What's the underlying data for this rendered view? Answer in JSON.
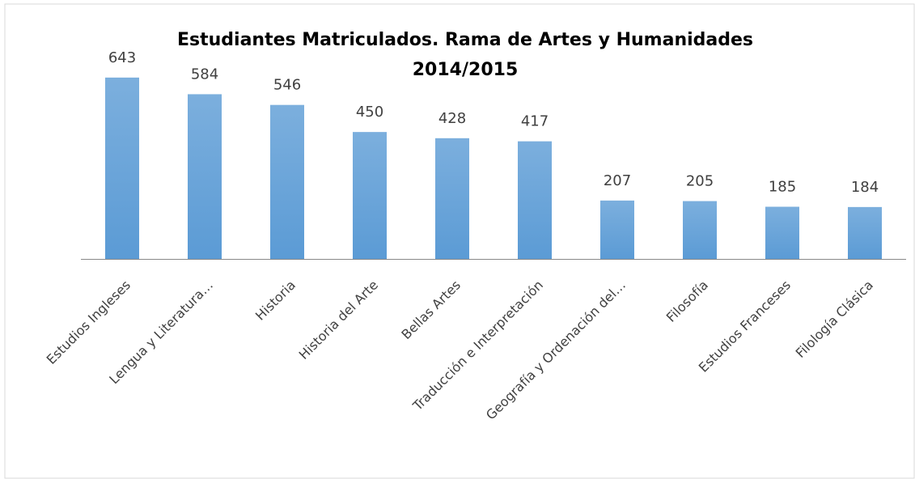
{
  "chart_data": {
    "type": "bar",
    "title": "Estudiantes Matriculados. Rama de Artes y Humanidades",
    "subtitle": "2014/2015",
    "categories": [
      "Estudios Ingleses",
      "Lengua y Literatura…",
      "Historia",
      "Historia del Arte",
      "Bellas Artes",
      "Traducción e Interpretación",
      "Geografía y Ordenación del…",
      "Filosofía",
      "Estudios Franceses",
      "Filología Clásica"
    ],
    "values": [
      643,
      584,
      546,
      450,
      428,
      417,
      207,
      205,
      185,
      184
    ],
    "color": "#5b9bd5",
    "ylim": [
      0,
      700
    ]
  }
}
